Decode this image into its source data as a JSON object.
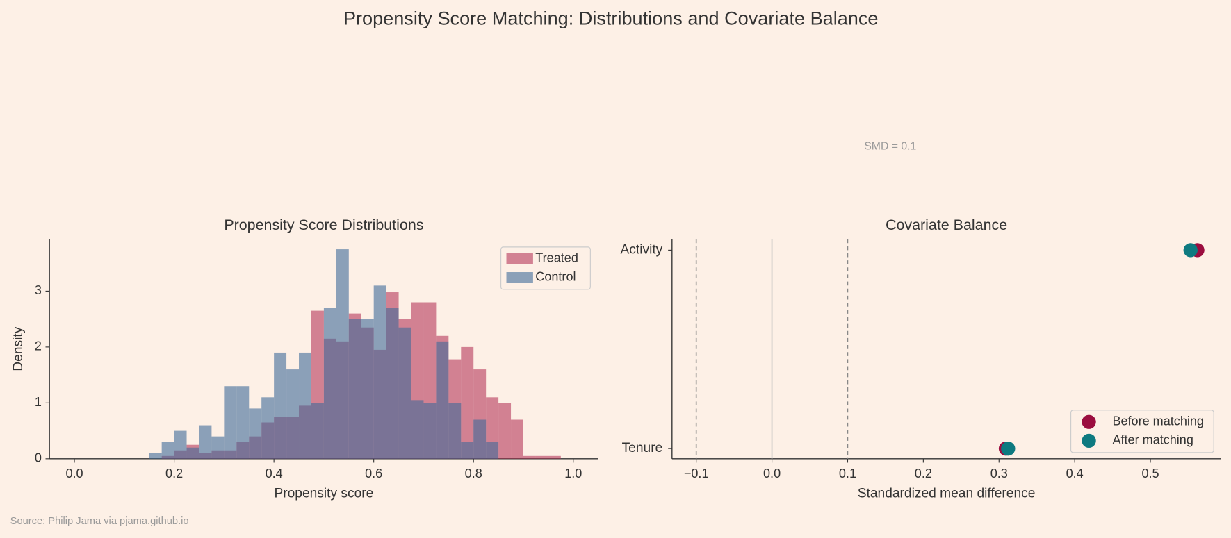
{
  "title": "Propensity Score Matching: Distributions and Covariate Balance",
  "source": "Source: Philip Jama via pjama.github.io",
  "chart_data": [
    {
      "type": "histogram",
      "title": "Propensity Score Distributions",
      "x_label": "Propensity score",
      "y_label": "Density",
      "bins": [
        0.15,
        0.175,
        0.2,
        0.225,
        0.25,
        0.275,
        0.3,
        0.325,
        0.35,
        0.375,
        0.4,
        0.425,
        0.45,
        0.475,
        0.5,
        0.525,
        0.55,
        0.575,
        0.6,
        0.625,
        0.65,
        0.675,
        0.7,
        0.725,
        0.75,
        0.775,
        0.8,
        0.825,
        0.85,
        0.875,
        0.9,
        0.925,
        0.95,
        0.975
      ],
      "series": [
        {
          "name": "Treated",
          "color": "#b5375a",
          "values": [
            0,
            0.05,
            0.15,
            0.25,
            0.1,
            0.15,
            0.15,
            0.3,
            0.4,
            0.65,
            0.75,
            0.75,
            0.95,
            2.65,
            2.15,
            2.1,
            2.6,
            2.35,
            1.95,
            2.98,
            2.5,
            2.8,
            2.8,
            2.2,
            1.78,
            2.0,
            1.6,
            1.1,
            1.0,
            0.7,
            0.05,
            0.05,
            0.05
          ]
        },
        {
          "name": "Control",
          "color": "#3f6a9a",
          "values": [
            0.1,
            0.3,
            0.5,
            0.2,
            0.6,
            0.4,
            1.3,
            1.3,
            0.9,
            1.1,
            1.9,
            1.6,
            1.9,
            1.0,
            2.7,
            3.75,
            2.5,
            2.5,
            3.1,
            2.7,
            2.35,
            1.05,
            1.0,
            2.1,
            1.0,
            0.3,
            0.7,
            0.3,
            0,
            0,
            0,
            0,
            0
          ]
        }
      ],
      "xlim": [
        -0.05,
        1.05
      ],
      "xticks": [
        {
          "value": 0,
          "label": "0.0"
        },
        0.2,
        0.4,
        0.6,
        0.8,
        {
          "value": 1,
          "label": "1.0"
        }
      ],
      "ylim": [
        0,
        3.93
      ],
      "yticks": [
        0,
        1,
        2,
        3
      ],
      "legend": "upper right"
    },
    {
      "type": "dotplot",
      "title": "Covariate Balance",
      "x_label": "Standardized mean difference",
      "categories": [
        "Tenure",
        "Activity"
      ],
      "series": [
        {
          "name": "Before matching",
          "color": "#9b0d3f",
          "values": [
            0.309,
            0.562
          ]
        },
        {
          "name": "After matching",
          "color": "#0e7a80",
          "values": [
            0.312,
            0.553
          ]
        }
      ],
      "xlim": [
        -0.132,
        0.593
      ],
      "xticks": [
        {
          "value": -0.1,
          "label": "−0.1"
        },
        {
          "value": 0,
          "label": "0.0"
        },
        0.1,
        0.2,
        0.3,
        0.4,
        0.5
      ],
      "reference_lines": [
        -0.1,
        0,
        0.1
      ],
      "reference_styles": [
        "dashed",
        "solid",
        "dashed"
      ],
      "annotation": "SMD = 0.1",
      "legend": "lower right"
    }
  ]
}
